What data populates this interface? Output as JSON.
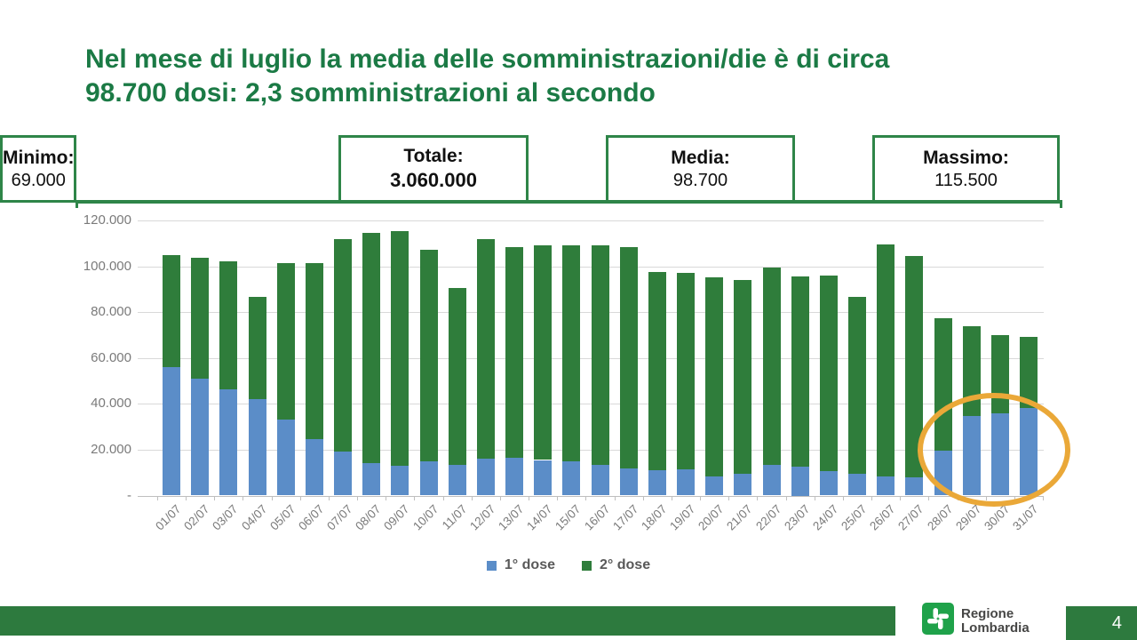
{
  "slide": {
    "title": {
      "line1": "Nel mese di luglio la media delle somministrazioni/die è di circa",
      "line2": "98.700 dosi: 2,3 somministrazioni al secondo"
    }
  },
  "stats": {
    "items": [
      {
        "label": "Totale:",
        "value": "3.060.000"
      },
      {
        "label": "Media:",
        "value": "98.700"
      },
      {
        "label": "Massimo:",
        "value": "115.500"
      },
      {
        "label": "Minimo:",
        "value": "69.000"
      }
    ]
  },
  "chart_data": {
    "type": "bar",
    "stacked": true,
    "categories": [
      "01/07",
      "02/07",
      "03/07",
      "04/07",
      "05/07",
      "06/07",
      "07/07",
      "08/07",
      "09/07",
      "10/07",
      "11/07",
      "12/07",
      "13/07",
      "14/07",
      "15/07",
      "16/07",
      "17/07",
      "18/07",
      "19/07",
      "20/07",
      "21/07",
      "22/07",
      "23/07",
      "24/07",
      "25/07",
      "26/07",
      "27/07",
      "28/07",
      "29/07",
      "30/07",
      "31/07"
    ],
    "series": [
      {
        "name": "1° dose",
        "color": "#5b8dc8",
        "values": [
          56000,
          51000,
          46500,
          42000,
          33000,
          24500,
          19000,
          14000,
          13000,
          15000,
          13500,
          16000,
          16500,
          15500,
          15000,
          13500,
          12000,
          11000,
          11500,
          8500,
          9500,
          13500,
          12500,
          10500,
          9500,
          8500,
          8000,
          19500,
          34500,
          36000,
          38000
        ]
      },
      {
        "name": "2° dose",
        "color": "#2f7d3b",
        "values": [
          49000,
          52500,
          55500,
          44500,
          68500,
          77000,
          93000,
          100500,
          102500,
          92000,
          77000,
          96000,
          92000,
          93500,
          94000,
          95500,
          96500,
          86500,
          85500,
          86500,
          84500,
          86000,
          83000,
          85500,
          77000,
          101000,
          96500,
          58000,
          39500,
          34000,
          31000
        ]
      }
    ],
    "ylim": [
      0,
      120000
    ],
    "ytick_interval": 20000,
    "ytick_labels": [
      "-",
      "20.000",
      "40.000",
      "60.000",
      "80.000",
      "100.000",
      "120.000"
    ],
    "grid": true,
    "legend_position": "bottom",
    "annotation": {
      "shape": "ellipse",
      "color": "#eaa838",
      "around": [
        "29/07",
        "30/07",
        "31/07"
      ]
    }
  },
  "footer": {
    "brand_line1": "Regione",
    "brand_line2": "Lombardia",
    "page_number": "4"
  },
  "colors": {
    "title_green": "#1b7a45",
    "box_border_green": "#2e8548",
    "footer_green": "#2d7a3e",
    "logo_green": "#1fa24a",
    "highlight_gold": "#eaa838"
  }
}
